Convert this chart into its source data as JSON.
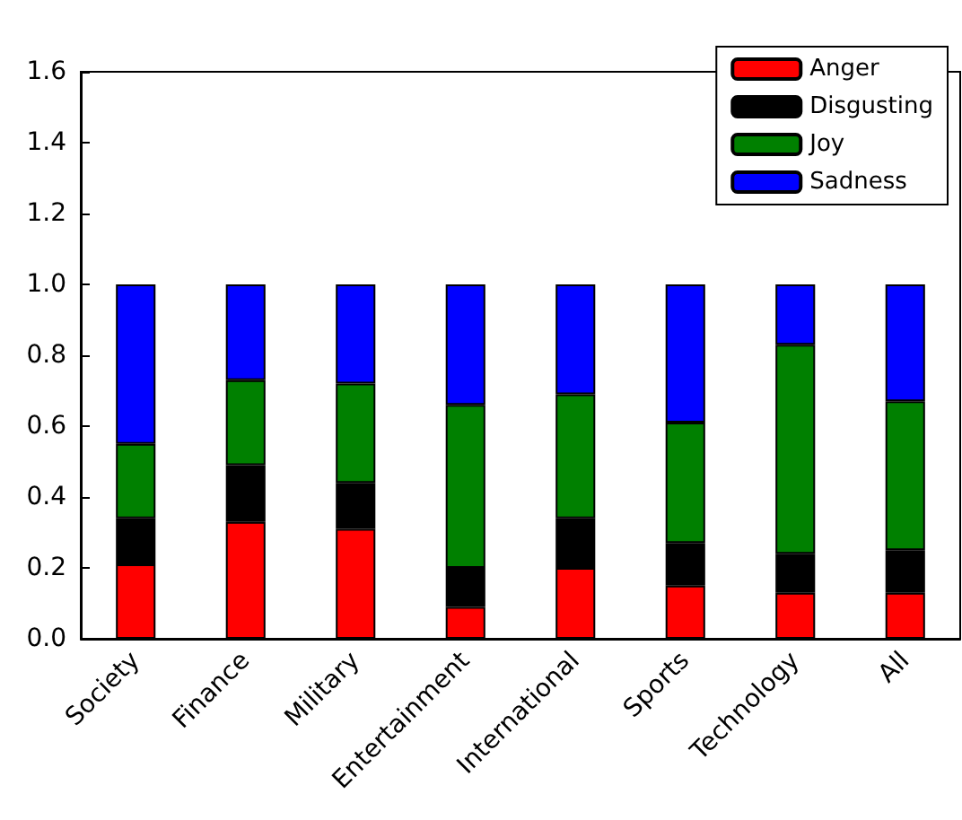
{
  "chart_data": {
    "type": "bar",
    "stacked": true,
    "categories": [
      "Society",
      "Finance",
      "Military",
      "Entertainment",
      "International",
      "Sports",
      "Technology",
      "All"
    ],
    "series": [
      {
        "name": "Anger",
        "color": "#ff0000",
        "values": [
          0.21,
          0.33,
          0.31,
          0.09,
          0.2,
          0.15,
          0.13,
          0.13
        ]
      },
      {
        "name": "Disgusting",
        "color": "#000000",
        "values": [
          0.13,
          0.16,
          0.13,
          0.11,
          0.14,
          0.12,
          0.11,
          0.12
        ]
      },
      {
        "name": "Joy",
        "color": "#008000",
        "values": [
          0.21,
          0.24,
          0.28,
          0.46,
          0.35,
          0.34,
          0.59,
          0.42
        ]
      },
      {
        "name": "Sadness",
        "color": "#0000ff",
        "values": [
          0.45,
          0.27,
          0.28,
          0.34,
          0.31,
          0.39,
          0.17,
          0.33
        ]
      }
    ],
    "ylim": [
      0,
      1.6
    ],
    "yticks": [
      {
        "value": 0,
        "label": "0.0"
      },
      0.2,
      0.4,
      0.6,
      0.8,
      {
        "value": 1,
        "label": "1.0"
      },
      1.2,
      1.4,
      1.6
    ],
    "grid": false,
    "legend": "top right"
  }
}
